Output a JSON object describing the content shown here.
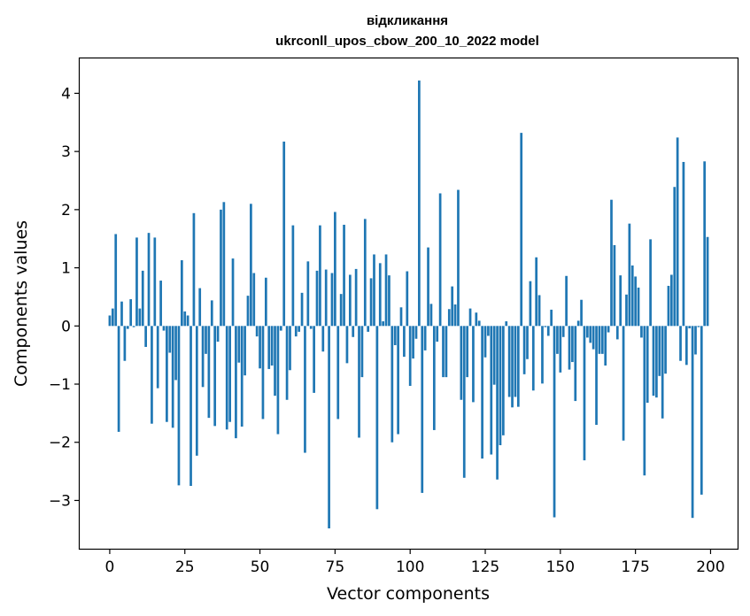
{
  "chart_data": {
    "type": "bar",
    "title": [
      "відкликання",
      "ukrconll_upos_cbow_200_10_2022 model"
    ],
    "xlabel": "Vector components",
    "ylabel": "Components values",
    "xlim": [
      -10,
      209
    ],
    "ylim": [
      -3.83,
      4.6
    ],
    "xticks": [
      0,
      25,
      50,
      75,
      100,
      125,
      150,
      175,
      200
    ],
    "yticks": [
      -3,
      -2,
      -1,
      0,
      1,
      2,
      3,
      4
    ],
    "bar_color": "#1f77b4",
    "values": [
      0.18,
      0.3,
      1.58,
      -1.82,
      0.42,
      -0.6,
      -0.05,
      0.46,
      -0.02,
      1.52,
      0.3,
      0.95,
      -0.36,
      1.6,
      -1.68,
      1.52,
      -1.07,
      0.78,
      -0.08,
      -1.65,
      -0.46,
      -1.75,
      -0.93,
      -2.74,
      1.13,
      0.25,
      0.18,
      -2.75,
      1.94,
      -2.23,
      0.65,
      -1.05,
      -0.48,
      -1.58,
      0.44,
      -1.72,
      -0.27,
      2.0,
      2.13,
      -1.78,
      -1.65,
      1.16,
      -1.93,
      -0.63,
      -1.73,
      -0.85,
      0.52,
      2.1,
      0.91,
      -0.18,
      -0.73,
      -1.6,
      0.83,
      -0.74,
      -0.68,
      -1.2,
      -1.86,
      -0.08,
      3.17,
      -1.27,
      -0.76,
      1.73,
      -0.18,
      -0.1,
      0.57,
      -2.18,
      1.11,
      -0.05,
      -1.15,
      0.95,
      1.73,
      -0.44,
      0.97,
      -3.48,
      0.91,
      1.96,
      -1.6,
      0.55,
      1.74,
      -0.64,
      0.88,
      -0.19,
      0.98,
      -1.92,
      -0.88,
      1.84,
      -0.1,
      0.82,
      1.23,
      -3.15,
      1.08,
      0.08,
      1.23,
      0.87,
      -2.0,
      -0.33,
      -1.86,
      0.32,
      -0.53,
      0.94,
      -1.03,
      -0.56,
      -0.22,
      4.22,
      -2.87,
      -0.42,
      1.35,
      0.38,
      -1.79,
      -0.27,
      2.28,
      -0.88,
      -0.88,
      0.29,
      0.68,
      0.37,
      2.34,
      -1.27,
      -2.61,
      -0.88,
      0.3,
      -1.31,
      0.23,
      0.09,
      -2.28,
      -0.54,
      -0.17,
      -2.21,
      -1.01,
      -2.64,
      -2.05,
      -1.88,
      0.08,
      -1.22,
      -1.4,
      -1.22,
      -1.39,
      3.32,
      -0.83,
      -0.57,
      0.77,
      -1.11,
      1.18,
      0.53,
      -0.99,
      -0.02,
      -0.17,
      0.28,
      -3.29,
      -0.48,
      -0.8,
      -0.19,
      0.86,
      -0.75,
      -0.62,
      -1.29,
      0.09,
      0.45,
      -2.31,
      -0.2,
      -0.29,
      -0.4,
      -1.7,
      -0.48,
      -0.48,
      -0.68,
      -0.11,
      2.17,
      1.39,
      -0.23,
      0.87,
      -1.97,
      0.54,
      1.76,
      1.04,
      0.85,
      0.66,
      -0.2,
      -2.57,
      -1.32,
      1.49,
      -1.2,
      -1.23,
      -0.86,
      -1.59,
      -0.82,
      0.69,
      0.88,
      2.39,
      3.24,
      -0.6,
      2.82,
      -0.67,
      -0.04,
      -3.3,
      -0.49,
      -0.02,
      -2.9,
      2.83,
      1.53
    ]
  }
}
